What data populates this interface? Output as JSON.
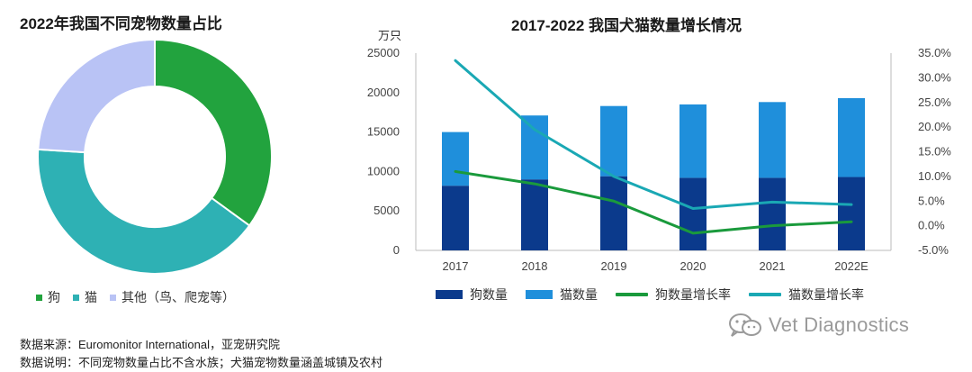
{
  "chart_data": [
    {
      "type": "pie",
      "title": "2022年我国不同宠物数量占比",
      "categories": [
        "狗",
        "猫",
        "其他（鸟、爬宠等）"
      ],
      "values": [
        35,
        41,
        24
      ],
      "colors": [
        "#22a33e",
        "#2eb1b4",
        "#b9c3f5"
      ],
      "donut": true
    },
    {
      "type": "bar",
      "title": "2017-2022 我国犬猫数量增长情况",
      "ylabel": "万只",
      "categories": [
        "2017",
        "2018",
        "2019",
        "2020",
        "2021",
        "2022E"
      ],
      "ylim": [
        0,
        25000
      ],
      "y_ticks": [
        "0",
        "5000",
        "10000",
        "15000",
        "20000",
        "25000"
      ],
      "y2lim": [
        -5,
        35
      ],
      "y2_ticks": [
        "-5.0%",
        "0.0%",
        "5.0%",
        "10.0%",
        "15.0%",
        "20.0%",
        "25.0%",
        "30.0%",
        "35.0%"
      ],
      "stacked": true,
      "series": [
        {
          "name": "狗数量",
          "kind": "bar",
          "color": "#0b3a8c",
          "values": [
            8200,
            9000,
            9400,
            9200,
            9200,
            9300
          ]
        },
        {
          "name": "猫数量",
          "kind": "bar",
          "color": "#1f8fdb",
          "values": [
            6800,
            8100,
            8900,
            9300,
            9600,
            10000
          ]
        },
        {
          "name": "狗数量增长率",
          "kind": "line",
          "axis": "right",
          "color": "#1a9a3c",
          "values": [
            11.0,
            8.5,
            5.0,
            -1.5,
            0.0,
            0.8
          ]
        },
        {
          "name": "猫数量增长率",
          "kind": "line",
          "axis": "right",
          "color": "#1aa8b4",
          "values": [
            33.5,
            19.5,
            10.0,
            3.5,
            4.8,
            4.3
          ]
        }
      ]
    }
  ],
  "footer": {
    "source": "数据来源：Euromonitor International，亚宠研究院",
    "note": "数据说明：不同宠物数量占比不含水族；犬猫宠物数量涵盖城镇及农村"
  },
  "watermark": {
    "text": "Vet Diagnostics",
    "icon": "wechat-icon"
  }
}
